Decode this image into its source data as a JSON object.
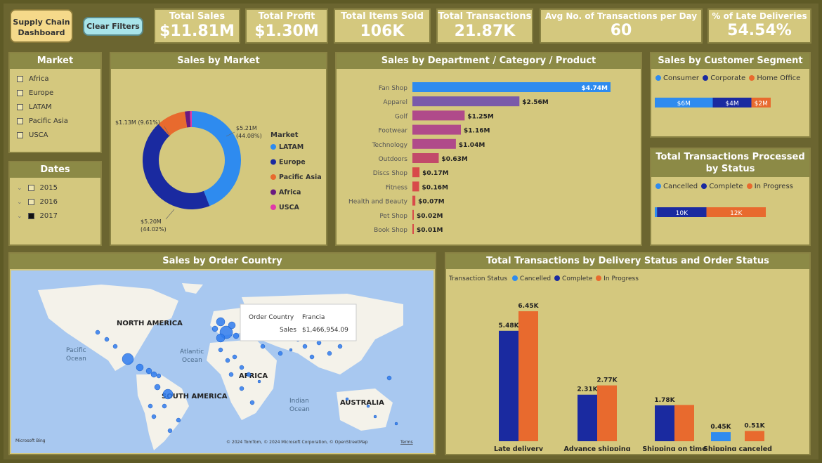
{
  "header": {
    "dashboard_button": "Supply Chain Dashboard",
    "clear_filters": "Clear Filters"
  },
  "kpis": [
    {
      "label": "Total Sales",
      "value": "$11.81M"
    },
    {
      "label": "Total Profit",
      "value": "$1.30M"
    },
    {
      "label": "Total Items Sold",
      "value": "106K"
    },
    {
      "label": "Total Transactions",
      "value": "21.87K"
    },
    {
      "label": "Avg No. of Transactions per Day",
      "value": "60"
    },
    {
      "label": "% of Late Deliveries",
      "value": "54.54%"
    }
  ],
  "market_slicer": {
    "title": "Market",
    "items": [
      "Africa",
      "Europe",
      "LATAM",
      "Pacific Asia",
      "USCA"
    ]
  },
  "dates_slicer": {
    "title": "Dates",
    "items": [
      {
        "label": "2015",
        "checked": false
      },
      {
        "label": "2016",
        "checked": false
      },
      {
        "label": "2017",
        "checked": true
      }
    ]
  },
  "sales_by_market": {
    "title": "Sales by Market",
    "legend_title": "Market",
    "labels": {
      "top_left": "$1.13M (9.61%)",
      "right_1": "$5.21M",
      "right_2": "(44.08%)",
      "bottom_1": "$5.20M",
      "bottom_2": "(44.02%)"
    }
  },
  "dept": {
    "title": "Sales by Department / Category / Product"
  },
  "segment": {
    "title": "Sales by Customer Segment",
    "legend": [
      "Consumer",
      "Corporate",
      "Home Office"
    ],
    "labels": [
      "$6M",
      "$4M",
      "$2M"
    ]
  },
  "status": {
    "title": "Total Transactions Processed by Status",
    "legend": [
      "Cancelled",
      "Complete",
      "In Progress"
    ],
    "labels": [
      "10K",
      "12K"
    ]
  },
  "map": {
    "title": "Sales by Order Country",
    "labels": {
      "na": "NORTH AMERICA",
      "sa": "SOUTH AMERICA",
      "af": "AFRICA",
      "au": "AUSTRALIA",
      "pac1": "Pacific",
      "pac2": "Ocean",
      "atl1": "Atlantic",
      "atl2": "Ocean",
      "ind1": "Indian",
      "ind2": "Ocean"
    },
    "tooltip": {
      "k1": "Order Country",
      "v1": "Francia",
      "k2": "Sales",
      "v2": "$1,466,954.09"
    },
    "credit": "Microsoft Bing",
    "copyright": "© 2024 TomTom, © 2024 Microsoft Corporation, © OpenStreetMap",
    "terms": "Terms"
  },
  "delivery": {
    "title": "Total Transactions by Delivery Status and Order Status",
    "legend_title": "Transaction Status",
    "legend": [
      "Cancelled",
      "Complete",
      "In Progress"
    ]
  },
  "chart_data": [
    {
      "type": "pie",
      "title": "Sales by Market",
      "categories": [
        "LATAM",
        "Europe",
        "Pacific Asia",
        "Africa",
        "USCA"
      ],
      "values": [
        5.21,
        5.2,
        1.13,
        0.2,
        0.07
      ],
      "unit": "$M",
      "colors": [
        "#2e8bef",
        "#1a2aa0",
        "#e86a2e",
        "#6a1a80",
        "#e03aa8"
      ],
      "legend": "right"
    },
    {
      "type": "bar",
      "title": "Sales by Department / Category / Product",
      "orientation": "horizontal",
      "categories": [
        "Fan Shop",
        "Apparel",
        "Golf",
        "Footwear",
        "Technology",
        "Outdoors",
        "Discs Shop",
        "Fitness",
        "Health and Beauty",
        "Pet Shop",
        "Book Shop"
      ],
      "values": [
        4.74,
        2.56,
        1.25,
        1.16,
        1.04,
        0.63,
        0.17,
        0.16,
        0.07,
        0.02,
        0.01
      ],
      "labels": [
        "$4.74M",
        "$2.56M",
        "$1.25M",
        "$1.16M",
        "$1.04M",
        "$0.63M",
        "$0.17M",
        "$0.16M",
        "$0.07M",
        "$0.02M",
        "$0.01M"
      ],
      "colors": [
        "#2e8bef",
        "#7a5aaa",
        "#b04a8a",
        "#b04a8a",
        "#b04a8a",
        "#c24a6a",
        "#d84a4a",
        "#d84a4a",
        "#d84a4a",
        "#d84a4a",
        "#d84a4a"
      ]
    },
    {
      "type": "bar",
      "title": "Sales by Customer Segment",
      "orientation": "stacked-horizontal",
      "categories": [
        "Consumer",
        "Corporate",
        "Home Office"
      ],
      "values": [
        6,
        4,
        2
      ],
      "colors": [
        "#2e8bef",
        "#1a2aa0",
        "#e86a2e"
      ]
    },
    {
      "type": "bar",
      "title": "Total Transactions Processed by Status",
      "orientation": "stacked-horizontal",
      "categories": [
        "Cancelled",
        "Complete",
        "In Progress"
      ],
      "values": [
        0.45,
        10,
        12
      ],
      "colors": [
        "#2e8bef",
        "#1a2aa0",
        "#e86a2e"
      ]
    },
    {
      "type": "bar",
      "title": "Total Transactions by Delivery Status and Order Status",
      "categories": [
        "Late delivery",
        "Advance shipping",
        "Shipping on time",
        "Shipping canceled"
      ],
      "series": [
        {
          "name": "Cancelled",
          "values": [
            0,
            0,
            0,
            0.45
          ],
          "labels": [
            "",
            "",
            "",
            "0.45K"
          ]
        },
        {
          "name": "Complete",
          "values": [
            5.48,
            2.31,
            1.78,
            0
          ],
          "labels": [
            "5.48K",
            "2.31K",
            "1.78K",
            ""
          ]
        },
        {
          "name": "In Progress",
          "values": [
            6.45,
            2.77,
            1.8,
            0.51
          ],
          "labels": [
            "6.45K",
            "2.77K",
            "",
            "0.51K"
          ]
        }
      ],
      "colors": [
        "#2e8bef",
        "#1a2aa0",
        "#e86a2e"
      ],
      "legend": "top-left"
    }
  ]
}
